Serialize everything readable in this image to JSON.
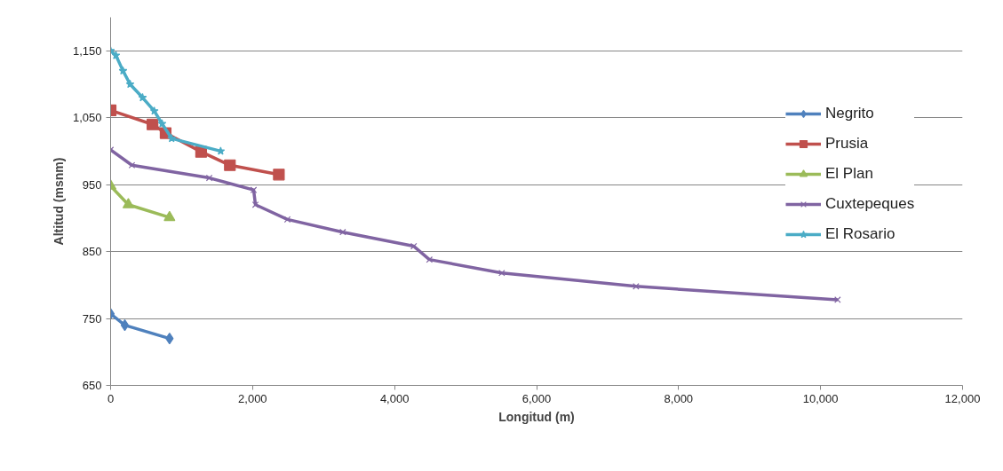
{
  "chart_data": {
    "type": "line",
    "xlabel": "Longitud (m)",
    "ylabel": "Altitud (msnm)",
    "xlim": [
      0,
      12000
    ],
    "ylim": [
      650,
      1200
    ],
    "xticks": [
      0,
      {
        "value": 2000,
        "label": "2,000"
      },
      {
        "value": 4000,
        "label": "4,000"
      },
      {
        "value": 6000,
        "label": "6,000"
      },
      {
        "value": 8000,
        "label": "8,000"
      },
      {
        "value": 10000,
        "label": "10,000"
      },
      {
        "value": 12000,
        "label": "12,000"
      }
    ],
    "yticks": [
      650,
      750,
      850,
      950,
      {
        "value": 1050,
        "label": "1,050"
      },
      {
        "value": 1150,
        "label": "1,150"
      }
    ],
    "grid": "y",
    "legend": "right",
    "series": [
      {
        "name": "Negrito",
        "color": "#4f81bd",
        "marker": "diamond",
        "x": [
          0,
          200,
          830
        ],
        "values": [
          757,
          740,
          720
        ]
      },
      {
        "name": "Prusia",
        "color": "#c0504d",
        "marker": "square",
        "x": [
          0,
          590,
          775,
          1275,
          1680,
          2370
        ],
        "values": [
          1061,
          1040,
          1027,
          999,
          979,
          965
        ]
      },
      {
        "name": "El Plan",
        "color": "#9bbb59",
        "marker": "triangle",
        "x": [
          0,
          250,
          830
        ],
        "values": [
          948,
          920,
          901
        ]
      },
      {
        "name": "Cuxtepeques",
        "color": "#8064a2",
        "marker": "cross",
        "x": [
          0,
          300,
          1390,
          2015,
          2040,
          2490,
          3270,
          4270,
          4490,
          5510,
          7400,
          10240
        ],
        "values": [
          1002,
          979,
          960,
          942,
          920,
          898,
          879,
          858,
          838,
          818,
          798,
          778
        ]
      },
      {
        "name": "El Rosario",
        "color": "#4bacc6",
        "marker": "star",
        "x": [
          0,
          75,
          175,
          275,
          450,
          615,
          725,
          860,
          1550
        ],
        "values": [
          1150,
          1143,
          1120,
          1100,
          1080,
          1060,
          1041,
          1019,
          1000
        ]
      }
    ]
  }
}
